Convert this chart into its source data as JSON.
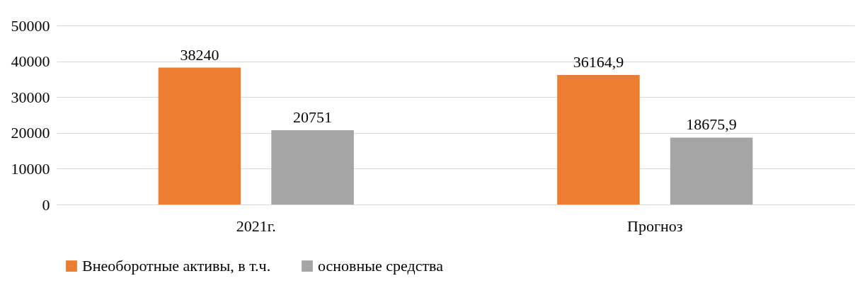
{
  "chart_data": {
    "type": "bar",
    "categories": [
      "2021г.",
      "Прогноз"
    ],
    "series": [
      {
        "name": "Внеоборотные активы, в т.ч.",
        "color": "#ed7d31",
        "values": [
          38240,
          36164.9
        ],
        "value_labels": [
          "38240",
          "36164,9"
        ]
      },
      {
        "name": "основные средства",
        "color": "#a5a5a5",
        "values": [
          20751,
          18675.9
        ],
        "value_labels": [
          "20751",
          "18675,9"
        ]
      }
    ],
    "ylim": [
      0,
      50000
    ],
    "yticks": [
      0,
      10000,
      20000,
      30000,
      40000,
      50000
    ],
    "grid": "y",
    "legend": "bottom"
  }
}
